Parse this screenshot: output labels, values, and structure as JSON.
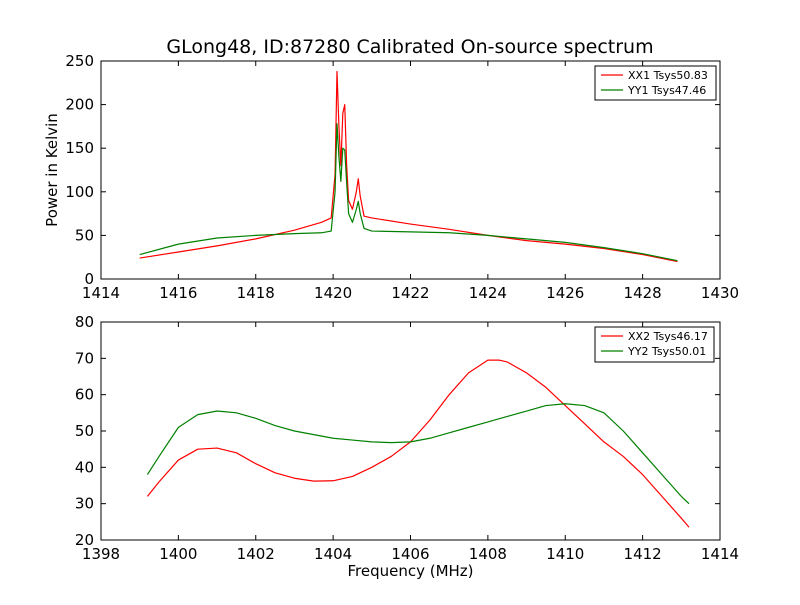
{
  "title": "GLong48, ID:87280 Calibrated On-source spectrum",
  "chart_data": [
    {
      "type": "line",
      "title": "GLong48, ID:87280 Calibrated On-source spectrum",
      "xlabel": "",
      "ylabel": "Power in Kelvin",
      "xlim": [
        1414,
        1430
      ],
      "ylim": [
        0,
        250
      ],
      "xticks": [
        1414,
        1416,
        1418,
        1420,
        1422,
        1424,
        1426,
        1428,
        1430
      ],
      "yticks": [
        0,
        50,
        100,
        150,
        200,
        250
      ],
      "grid": false,
      "legend_position": "top-right",
      "series": [
        {
          "name": "XX1 Tsys50.83",
          "color": "#ff0000",
          "x": [
            1415.0,
            1416.0,
            1417.0,
            1418.0,
            1419.0,
            1419.7,
            1419.95,
            1420.05,
            1420.1,
            1420.15,
            1420.2,
            1420.25,
            1420.3,
            1420.35,
            1420.4,
            1420.5,
            1420.6,
            1420.65,
            1420.7,
            1420.8,
            1421.0,
            1422.0,
            1423.0,
            1424.0,
            1425.0,
            1426.0,
            1427.0,
            1428.0,
            1428.9
          ],
          "y": [
            24,
            31,
            38,
            46,
            56,
            65,
            70,
            120,
            238,
            175,
            130,
            190,
            200,
            130,
            90,
            80,
            100,
            115,
            95,
            72,
            70,
            63,
            57,
            50,
            44,
            40,
            35,
            28,
            20
          ]
        },
        {
          "name": "YY1 Tsys47.46",
          "color": "#008000",
          "x": [
            1415.0,
            1416.0,
            1417.0,
            1418.0,
            1419.0,
            1419.7,
            1419.95,
            1420.05,
            1420.1,
            1420.15,
            1420.2,
            1420.25,
            1420.3,
            1420.35,
            1420.4,
            1420.5,
            1420.6,
            1420.65,
            1420.7,
            1420.8,
            1421.0,
            1422.0,
            1423.0,
            1424.0,
            1425.0,
            1426.0,
            1427.0,
            1428.0,
            1428.9
          ],
          "y": [
            28,
            40,
            47,
            50,
            52,
            53,
            55,
            100,
            178,
            140,
            112,
            150,
            148,
            110,
            75,
            65,
            80,
            89,
            75,
            58,
            55,
            54,
            53,
            50,
            46,
            42,
            36,
            29,
            21
          ]
        }
      ]
    },
    {
      "type": "line",
      "title": "",
      "xlabel": "Frequency (MHz)",
      "ylabel": "",
      "xlim": [
        1398,
        1414
      ],
      "ylim": [
        20,
        80
      ],
      "xticks": [
        1398,
        1400,
        1402,
        1404,
        1406,
        1408,
        1410,
        1412,
        1414
      ],
      "yticks": [
        20,
        30,
        40,
        50,
        60,
        70,
        80
      ],
      "grid": false,
      "legend_position": "top-right",
      "series": [
        {
          "name": "XX2 Tsys46.17",
          "color": "#ff0000",
          "x": [
            1399.2,
            1399.5,
            1400.0,
            1400.5,
            1401.0,
            1401.5,
            1402.0,
            1402.5,
            1403.0,
            1403.5,
            1404.0,
            1404.5,
            1405.0,
            1405.5,
            1406.0,
            1406.5,
            1407.0,
            1407.5,
            1408.0,
            1408.3,
            1408.5,
            1409.0,
            1409.5,
            1410.0,
            1410.5,
            1411.0,
            1411.5,
            1412.0,
            1412.5,
            1413.0,
            1413.2
          ],
          "y": [
            32,
            36,
            42,
            45,
            45.3,
            44,
            41,
            38.5,
            37,
            36.2,
            36.3,
            37.5,
            40,
            43,
            47,
            53,
            60,
            66,
            69.5,
            69.5,
            69,
            66,
            62,
            57,
            52,
            47,
            43,
            38,
            32,
            26,
            23.5
          ]
        },
        {
          "name": "YY2 Tsys50.01",
          "color": "#008000",
          "x": [
            1399.2,
            1399.5,
            1400.0,
            1400.5,
            1401.0,
            1401.5,
            1402.0,
            1402.5,
            1403.0,
            1403.5,
            1404.0,
            1404.5,
            1405.0,
            1405.5,
            1406.0,
            1406.5,
            1407.0,
            1407.5,
            1408.0,
            1408.5,
            1409.0,
            1409.5,
            1410.0,
            1410.5,
            1411.0,
            1411.5,
            1412.0,
            1412.5,
            1413.0,
            1413.2
          ],
          "y": [
            38,
            43,
            51,
            54.5,
            55.5,
            55,
            53.5,
            51.5,
            50,
            49,
            48,
            47.5,
            47,
            46.8,
            47,
            48,
            49.5,
            51,
            52.5,
            54,
            55.5,
            57,
            57.5,
            57,
            55,
            50,
            44,
            38,
            32,
            30
          ]
        }
      ]
    }
  ]
}
